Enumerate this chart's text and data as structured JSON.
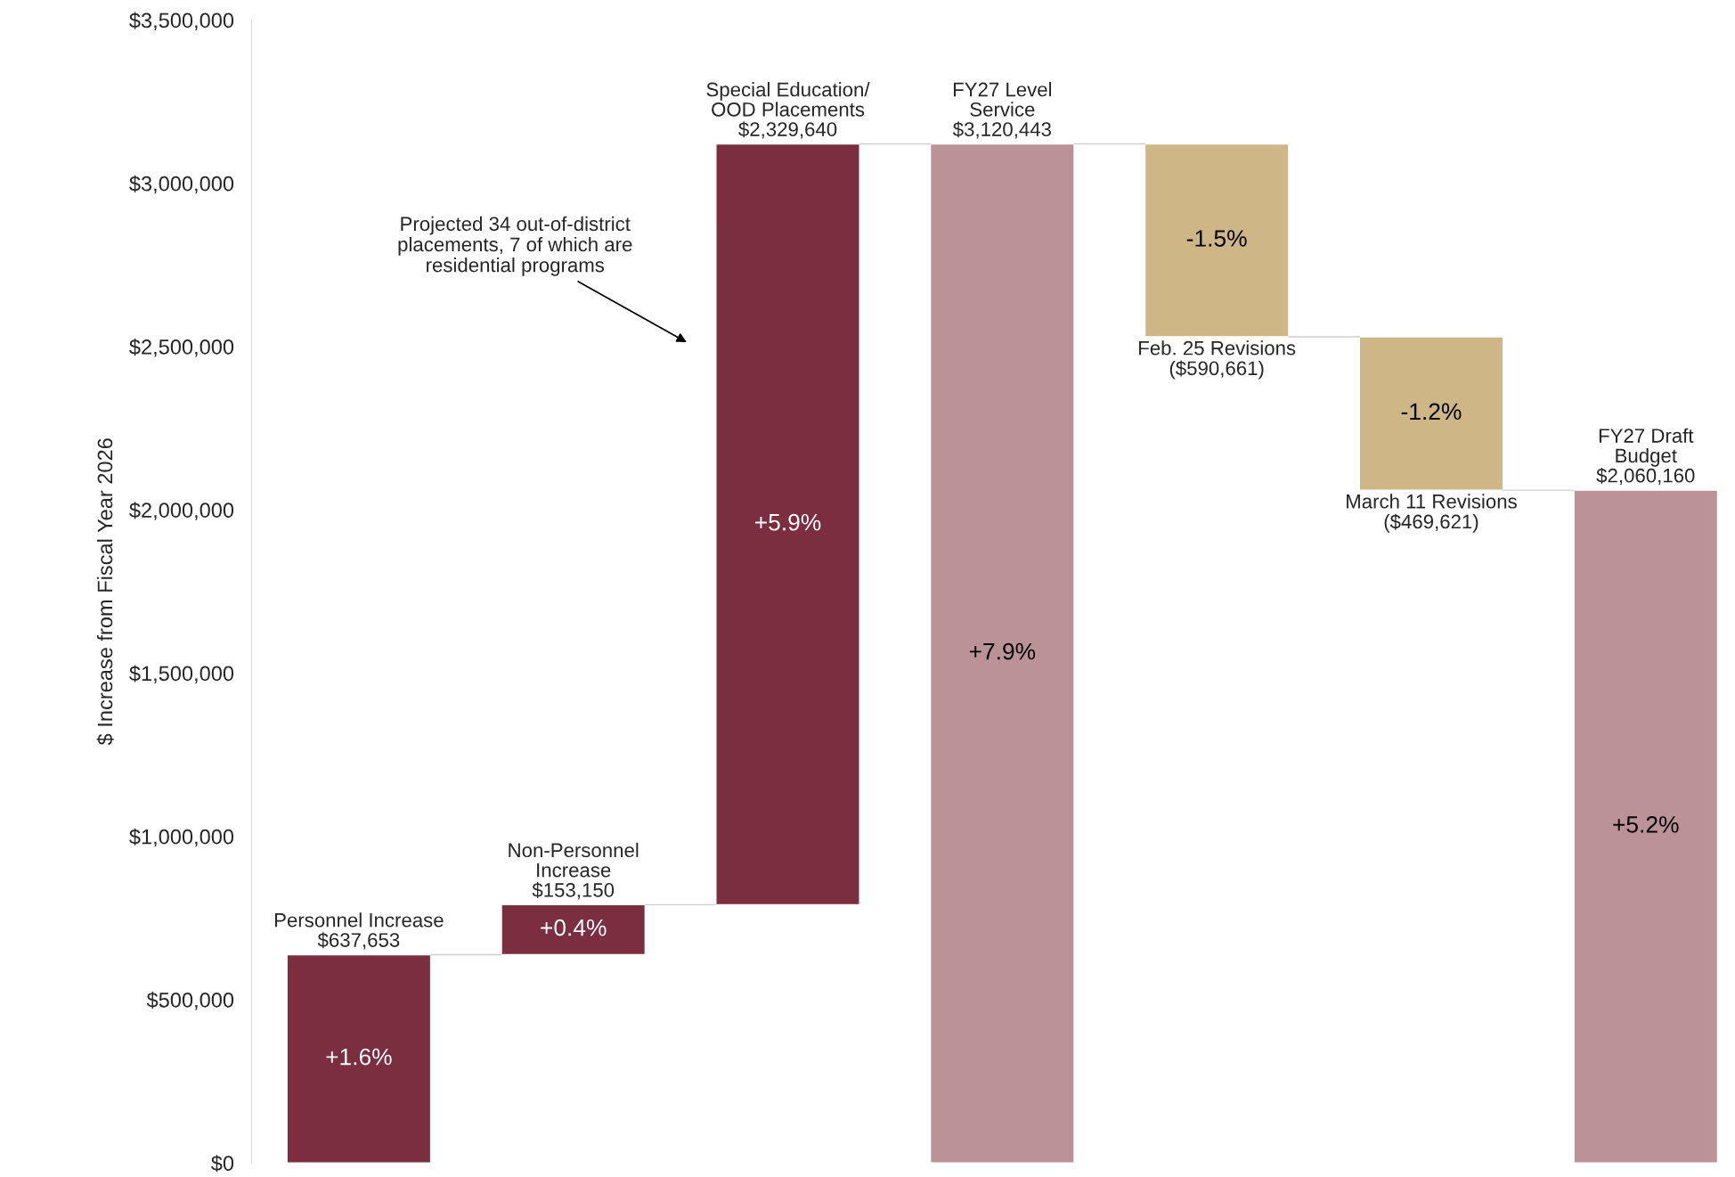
{
  "chart_data": {
    "type": "bar",
    "ylabel": "$ Increase from Fiscal Year 2026",
    "categories": [
      "Personnel Increase",
      "Non-Personnel\nIncrease",
      "Special Education/\nOOD Placements",
      "FY27 Level\nService",
      "Feb. 25 Revisions",
      "March 11 Revisions",
      "FY27 Draft\nBudget"
    ],
    "values": [
      637653,
      153150,
      2329640,
      3120443,
      -590661,
      -469621,
      2060160
    ],
    "base": [
      0,
      637653,
      790803,
      0,
      3120443,
      2529782,
      0
    ],
    "colors": [
      "#7a2e40",
      "#7a2e40",
      "#7a2e40",
      "#bc9299",
      "#cfb686",
      "#cfb686",
      "#bc9299"
    ],
    "value_labels": [
      "$637,653",
      "$153,150",
      "$2,329,640",
      "$3,120,443",
      "($590,661)",
      "($469,621)",
      "$2,060,160"
    ],
    "annotations": [
      "+1.6%",
      "+0.4%",
      "+5.9%",
      "+7.9%",
      "-1.5%",
      "-1.2%",
      "+5.2%",
      "Projected 34 out-of-district\nplacements, 7 of which are\nresidential programs"
    ],
    "ylim": [
      0,
      3500000
    ],
    "yticks": [
      {
        "value": 0,
        "label": "$0"
      },
      {
        "value": 500000,
        "label": "$500,000"
      },
      {
        "value": 1000000,
        "label": "$1,000,000"
      },
      {
        "value": 1500000,
        "label": "$1,500,000"
      },
      {
        "value": 2000000,
        "label": "$2,000,000"
      },
      {
        "value": 2500000,
        "label": "$2,500,000"
      },
      {
        "value": 3000000,
        "label": "$3,000,000"
      },
      {
        "value": 3500000,
        "label": "$3,500,000"
      }
    ],
    "tick_labels": "y",
    "grid": false,
    "legend": false
  }
}
